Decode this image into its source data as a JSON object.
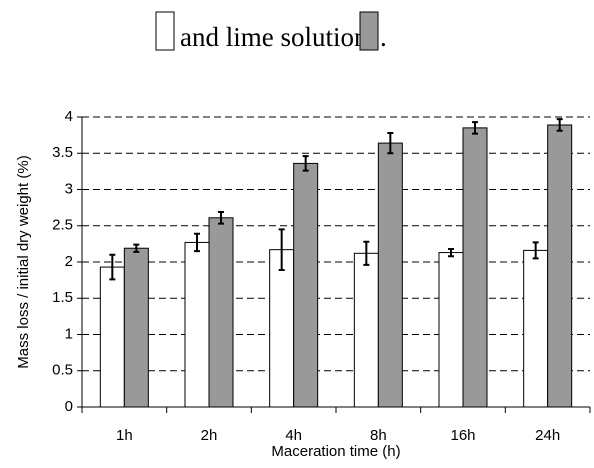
{
  "chart_data": {
    "type": "bar",
    "caption": "and lime solution",
    "caption_end": ".",
    "x_label": "Maceration time (h)",
    "y_label": "Mass loss / initial dry weight (%)",
    "categories": [
      "1h",
      "2h",
      "4h",
      "8h",
      "16h",
      "24h"
    ],
    "series": [
      {
        "color": "#ffffff",
        "values": [
          1.93,
          2.27,
          2.17,
          2.12,
          2.13,
          2.16
        ],
        "errors": [
          0.17,
          0.12,
          0.28,
          0.16,
          0.05,
          0.11
        ]
      },
      {
        "color": "#999999",
        "values": [
          2.19,
          2.61,
          3.36,
          3.64,
          3.85,
          3.89
        ],
        "errors": [
          0.05,
          0.08,
          0.1,
          0.14,
          0.08,
          0.08
        ]
      }
    ],
    "ylim": [
      0,
      4
    ],
    "yticks": [
      0,
      0.5,
      1,
      1.5,
      2,
      2.5,
      3,
      3.5,
      4
    ],
    "grid": true
  }
}
